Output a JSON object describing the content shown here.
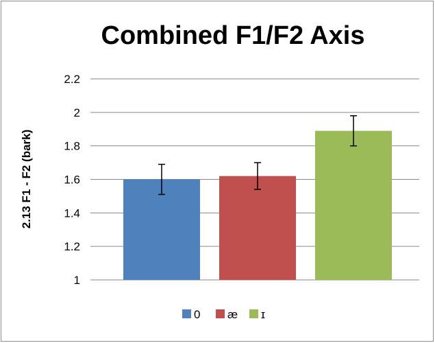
{
  "chart_data": {
    "type": "bar",
    "title": "Combined F1/F2 Axis",
    "ylabel": "2.13 F1 - F2 (bark)",
    "xlabel": "",
    "ylim": [
      1,
      2.2
    ],
    "yticks": [
      "1",
      "1.2",
      "1.4",
      "1.6",
      "1.8",
      "2",
      "2.2"
    ],
    "ytick_values": [
      1,
      1.2,
      1.4,
      1.6,
      1.8,
      2,
      2.2
    ],
    "grid": true,
    "legend_position": "bottom",
    "series": [
      {
        "name": "0",
        "value": 1.6,
        "error": 0.09,
        "color": "#4f81bd"
      },
      {
        "name": "æ",
        "value": 1.62,
        "error": 0.08,
        "color": "#c0504d"
      },
      {
        "name": "ɪ",
        "value": 1.89,
        "error": 0.09,
        "color": "#9bbb59"
      }
    ]
  }
}
